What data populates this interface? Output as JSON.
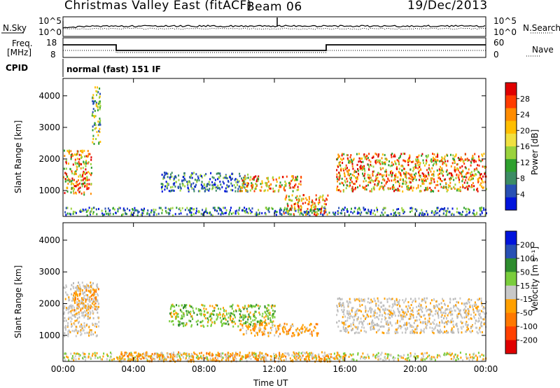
{
  "header": {
    "station": "Christmas Valley East (fitACF)",
    "beam": "Beam 06",
    "date": "19/Dec/2013"
  },
  "status_panels": {
    "nsky_label": "N.Sky",
    "nsearch_label": "N.Search",
    "freq_label_line1": "Freq.",
    "freq_label_line2": "[MHz]",
    "nave_label": "Nave",
    "cpid_label": "CPID",
    "cpid_text": "normal (fast) 151 IF",
    "noise_left_ticks": [
      "10^5",
      "10^0"
    ],
    "noise_right_ticks": [
      "10^5",
      "10^0"
    ],
    "freq_left_ticks": [
      "18",
      "8"
    ],
    "nave_right_ticks": [
      "60",
      "0"
    ]
  },
  "chart_data": [
    {
      "type": "heatmap",
      "name": "power",
      "ylabel": "Slant Range [km]",
      "yticks": [
        "4000",
        "3000",
        "2000",
        "1000"
      ],
      "ytick_values": [
        4000,
        3000,
        2000,
        1000
      ],
      "ylim": [
        180,
        4550
      ],
      "xlabel": "Time UT",
      "xticks": [
        "00:00",
        "04:00",
        "08:00",
        "12:00",
        "16:00",
        "20:00",
        "00:00"
      ],
      "xtick_values": [
        0,
        4,
        8,
        12,
        16,
        20,
        24
      ],
      "xlim": [
        0,
        24
      ],
      "colorbar": {
        "label": "Power [dB]",
        "ticks": [
          "28",
          "24",
          "20",
          "16",
          "12",
          "8",
          "4"
        ],
        "colors": [
          "#e00000",
          "#ff3c00",
          "#ff8c00",
          "#ffbe00",
          "#f0e040",
          "#9ad23c",
          "#2ea02e",
          "#3c8c64",
          "#2850b4",
          "#0014dc"
        ]
      },
      "features": [
        {
          "t": [
            0.0,
            1.6
          ],
          "range": [
            900,
            2300
          ],
          "level": "high"
        },
        {
          "t": [
            1.6,
            2.1
          ],
          "range": [
            2500,
            4300
          ],
          "level": "medium"
        },
        {
          "t": [
            5.5,
            10.5
          ],
          "range": [
            1000,
            1600
          ],
          "level": "low"
        },
        {
          "t": [
            10.0,
            13.5
          ],
          "range": [
            1000,
            1500
          ],
          "level": "high"
        },
        {
          "t": [
            12.5,
            15.0
          ],
          "range": [
            250,
            900
          ],
          "level": "high"
        },
        {
          "t": [
            15.5,
            24.0
          ],
          "range": [
            1000,
            2200
          ],
          "level": "high"
        }
      ]
    },
    {
      "type": "heatmap",
      "name": "velocity",
      "ylabel": "Slant Range [km]",
      "yticks": [
        "4000",
        "3000",
        "2000",
        "1000"
      ],
      "ytick_values": [
        4000,
        3000,
        2000,
        1000
      ],
      "ylim": [
        180,
        4550
      ],
      "xlabel": "Time UT",
      "xticks": [
        "00:00",
        "04:00",
        "08:00",
        "12:00",
        "16:00",
        "20:00",
        "00:00"
      ],
      "xtick_values": [
        0,
        4,
        8,
        12,
        16,
        20,
        24
      ],
      "xlim": [
        0,
        24
      ],
      "colorbar": {
        "label": "Velocity [m s⁻¹]",
        "ticks": [
          "200",
          "100",
          "50",
          "15",
          "-15",
          "-50",
          "-100",
          "-200"
        ],
        "colors": [
          "#0014dc",
          "#2850b4",
          "#2e8c2e",
          "#7acd3c",
          "#c8c8c8",
          "#ffa000",
          "#ff7800",
          "#ff4000",
          "#e00000"
        ]
      },
      "features": [
        {
          "t": [
            0.0,
            2.0
          ],
          "range": [
            1000,
            2700
          ],
          "level": "grey"
        },
        {
          "t": [
            0.5,
            2.0
          ],
          "range": [
            1800,
            2500
          ],
          "level": "orange"
        },
        {
          "t": [
            6.0,
            12.0
          ],
          "range": [
            1300,
            2000
          ],
          "level": "green"
        },
        {
          "t": [
            10.0,
            14.5
          ],
          "range": [
            1000,
            1400
          ],
          "level": "orange"
        },
        {
          "t": [
            15.5,
            24.0
          ],
          "range": [
            1100,
            2200
          ],
          "level": "grey"
        },
        {
          "t": [
            3.0,
            16.0
          ],
          "range": [
            200,
            500
          ],
          "level": "orange"
        }
      ]
    }
  ]
}
